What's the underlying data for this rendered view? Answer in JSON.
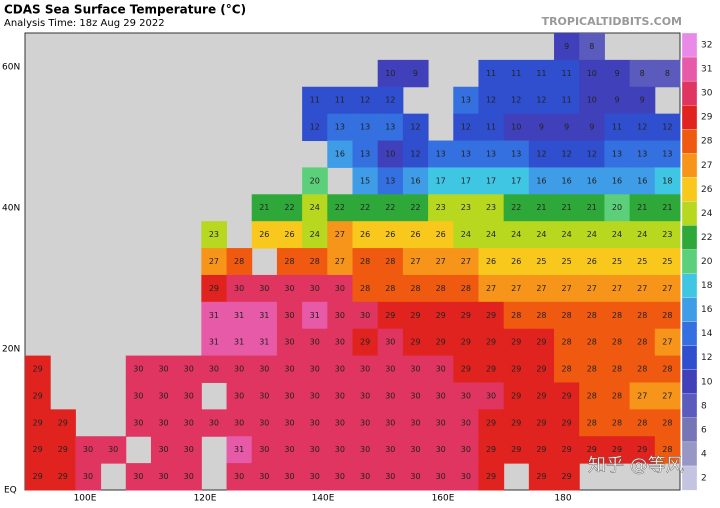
{
  "header": {
    "title": "CDAS Sea Surface Temperature (°C)",
    "subtitle": "Analysis Time: 18z Aug 29 2022",
    "source": "TROPICALTIDBITS.COM"
  },
  "map": {
    "lat_labels": [
      "60N",
      "40N",
      "20N",
      "EQ"
    ],
    "lon_labels": [
      "100E",
      "120E",
      "140E",
      "160E",
      "180"
    ],
    "grid": [
      [
        null,
        null,
        null,
        null,
        null,
        null,
        null,
        null,
        null,
        null,
        null,
        null,
        null,
        null,
        null,
        null,
        null,
        null,
        null,
        null,
        null,
        9,
        8,
        null,
        null,
        null
      ],
      [
        null,
        null,
        null,
        null,
        null,
        null,
        null,
        null,
        null,
        null,
        null,
        null,
        null,
        null,
        10,
        9,
        null,
        null,
        11,
        11,
        11,
        11,
        10,
        9,
        8,
        8
      ],
      [
        null,
        null,
        null,
        null,
        null,
        null,
        null,
        null,
        null,
        null,
        null,
        11,
        11,
        12,
        12,
        null,
        null,
        13,
        12,
        12,
        12,
        11,
        10,
        9,
        9,
        null
      ],
      [
        null,
        null,
        null,
        null,
        null,
        null,
        null,
        null,
        null,
        null,
        null,
        12,
        13,
        13,
        13,
        12,
        null,
        12,
        11,
        10,
        9,
        9,
        9,
        11,
        12,
        12
      ],
      [
        null,
        null,
        null,
        null,
        null,
        null,
        null,
        null,
        null,
        null,
        null,
        null,
        16,
        13,
        10,
        12,
        13,
        13,
        13,
        13,
        12,
        12,
        12,
        13,
        13,
        13
      ],
      [
        null,
        null,
        null,
        null,
        null,
        null,
        null,
        null,
        null,
        null,
        null,
        20,
        null,
        15,
        13,
        16,
        17,
        17,
        17,
        17,
        16,
        16,
        16,
        16,
        16,
        18
      ],
      [
        null,
        null,
        null,
        null,
        null,
        null,
        null,
        null,
        null,
        21,
        22,
        24,
        22,
        22,
        22,
        22,
        23,
        23,
        23,
        22,
        21,
        21,
        21,
        20,
        21,
        21
      ],
      [
        null,
        null,
        null,
        null,
        null,
        null,
        null,
        23,
        null,
        26,
        26,
        24,
        27,
        26,
        26,
        26,
        26,
        24,
        24,
        24,
        24,
        24,
        24,
        24,
        24,
        23
      ],
      [
        null,
        null,
        null,
        null,
        null,
        null,
        null,
        27,
        28,
        null,
        28,
        28,
        27,
        28,
        28,
        27,
        27,
        27,
        26,
        26,
        25,
        25,
        26,
        25,
        25,
        25
      ],
      [
        null,
        null,
        null,
        null,
        null,
        null,
        null,
        29,
        30,
        30,
        30,
        30,
        30,
        28,
        28,
        28,
        28,
        28,
        27,
        27,
        27,
        27,
        27,
        27,
        27,
        27
      ],
      [
        null,
        null,
        null,
        null,
        null,
        null,
        null,
        31,
        31,
        31,
        30,
        31,
        30,
        30,
        29,
        29,
        29,
        29,
        29,
        28,
        28,
        28,
        28,
        28,
        28,
        28
      ],
      [
        null,
        null,
        null,
        null,
        null,
        null,
        null,
        31,
        31,
        31,
        30,
        30,
        30,
        29,
        30,
        29,
        29,
        29,
        29,
        29,
        29,
        28,
        28,
        28,
        28,
        27
      ],
      [
        29,
        null,
        null,
        null,
        30,
        30,
        30,
        30,
        30,
        30,
        30,
        30,
        30,
        30,
        30,
        30,
        30,
        29,
        29,
        29,
        29,
        28,
        28,
        28,
        28,
        28
      ],
      [
        29,
        null,
        null,
        null,
        30,
        30,
        30,
        null,
        30,
        30,
        30,
        30,
        30,
        30,
        30,
        30,
        30,
        30,
        30,
        29,
        29,
        29,
        28,
        28,
        27,
        27
      ],
      [
        29,
        29,
        null,
        null,
        30,
        30,
        30,
        30,
        30,
        30,
        30,
        30,
        30,
        30,
        30,
        30,
        30,
        30,
        29,
        29,
        29,
        29,
        28,
        28,
        28,
        28
      ],
      [
        29,
        29,
        30,
        30,
        null,
        30,
        30,
        null,
        31,
        30,
        30,
        30,
        30,
        30,
        30,
        30,
        30,
        30,
        29,
        29,
        29,
        29,
        29,
        29,
        29,
        28
      ],
      [
        29,
        29,
        30,
        null,
        30,
        30,
        30,
        null,
        30,
        30,
        30,
        30,
        30,
        30,
        30,
        30,
        30,
        30,
        29,
        null,
        29,
        29,
        null,
        null,
        null,
        null
      ]
    ],
    "land_color": "#d2d2d2"
  },
  "colorbar": {
    "ticks": [
      32,
      31,
      30,
      29,
      28,
      27,
      26,
      24,
      22,
      20,
      18,
      16,
      14,
      12,
      10,
      8,
      6,
      4,
      2
    ],
    "colors": [
      "#e98ae9",
      "#e75aa8",
      "#df3560",
      "#e0231f",
      "#f05a10",
      "#f7951a",
      "#f8c81c",
      "#b8d820",
      "#2fa83a",
      "#5ccf7a",
      "#3fc6e2",
      "#3f9ce6",
      "#3470e0",
      "#2f4fcf",
      "#4140bb",
      "#5b5bbd",
      "#7676b6",
      "#9797c6",
      "#c4c4e0"
    ]
  },
  "watermark": "知乎 @等风"
}
